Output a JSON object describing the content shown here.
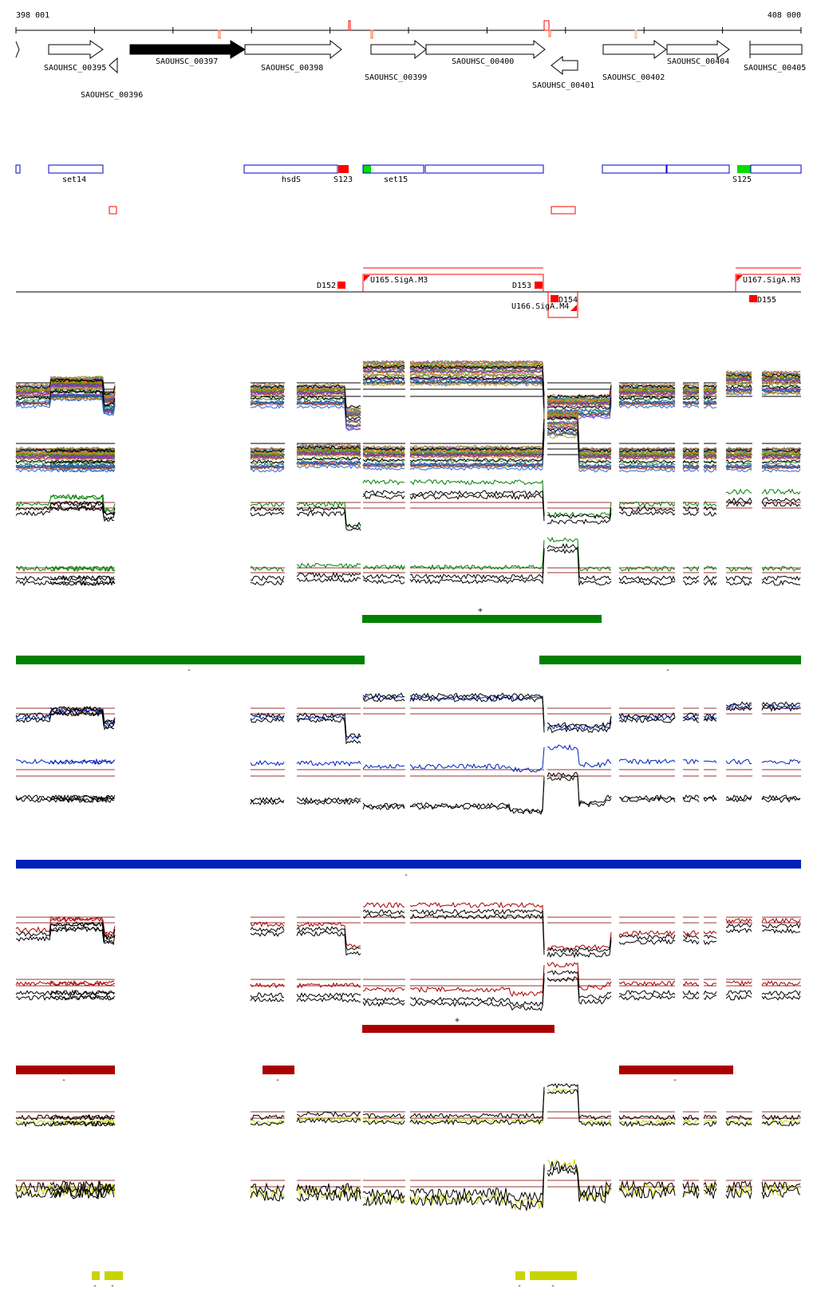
{
  "coordinates": {
    "start": "398 001",
    "end": "408 000"
  },
  "genes": [
    {
      "id": "frag",
      "label": "",
      "strand": "+",
      "fill": "#ffffff"
    },
    {
      "id": "g395",
      "label": "SAOUHSC_00395",
      "strand": "+",
      "fill": "#ffffff"
    },
    {
      "id": "g396",
      "label": "SAOUHSC_00396",
      "strand": "-",
      "fill": "#ffffff"
    },
    {
      "id": "g397",
      "label": "SAOUHSC_00397",
      "strand": "+",
      "fill": "#000000"
    },
    {
      "id": "g398",
      "label": "SAOUHSC_00398",
      "strand": "+",
      "fill": "#ffffff"
    },
    {
      "id": "g399",
      "label": "SAOUHSC_00399",
      "strand": "+",
      "fill": "#ffffff"
    },
    {
      "id": "g400",
      "label": "SAOUHSC_00400",
      "strand": "+",
      "fill": "#ffffff"
    },
    {
      "id": "g401",
      "label": "SAOUHSC_00401",
      "strand": "-",
      "fill": "#ffffff"
    },
    {
      "id": "g402",
      "label": "SAOUHSC_00402",
      "strand": "+",
      "fill": "#ffffff"
    },
    {
      "id": "g404",
      "label": "SAOUHSC_00404",
      "strand": "+",
      "fill": "#ffffff"
    },
    {
      "id": "g405",
      "label": "SAOUHSC_00405",
      "strand": "+",
      "fill": "#ffffff"
    }
  ],
  "annotations": [
    {
      "label": ""
    },
    {
      "label": "set14"
    },
    {
      "label": "hsdS"
    },
    {
      "label": "S123"
    },
    {
      "label": "set15"
    },
    {
      "label": ""
    },
    {
      "label": ""
    },
    {
      "label": ""
    },
    {
      "label": "S125"
    }
  ],
  "segments": [
    {
      "label": "D152"
    },
    {
      "label": "U165.SigA.M3"
    },
    {
      "label": "D153"
    },
    {
      "label": "D154"
    },
    {
      "label": "U166.SigA.M4"
    },
    {
      "label": "U167.SigA.M3"
    },
    {
      "label": "D155"
    }
  ],
  "conditions": [
    {
      "color": "#008000",
      "plus_label": "+",
      "minus_label": "-"
    },
    {
      "color": "#0022bb",
      "plus_label": "",
      "minus_label": "-"
    },
    {
      "color": "#aa0000",
      "plus_label": "+",
      "minus_label": "-"
    },
    {
      "color": "#c8d400",
      "plus_label": "",
      "minus_label": "-"
    }
  ],
  "colors": {
    "gene_outline": "#000000",
    "annotation_outline": "#0000cc",
    "highlight_red": "#ff0000",
    "threshold": "#993333"
  }
}
